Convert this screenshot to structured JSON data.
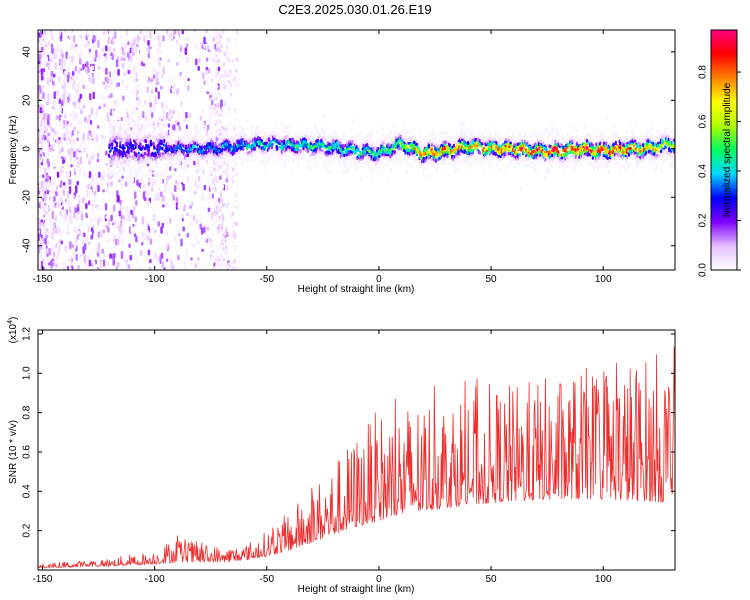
{
  "title": "C2E3.2025.030.01.26.E19",
  "chart_data": [
    {
      "type": "heatmap",
      "title": "C2E3.2025.030.01.26.E19",
      "xlabel": "Height of straight line (km)",
      "ylabel": "Frequency (Hz)",
      "xlim": [
        -152,
        132
      ],
      "ylim": [
        -50,
        49
      ],
      "xticks": [
        -150,
        -100,
        -50,
        0,
        50,
        100
      ],
      "yticks": [
        -40,
        -20,
        0,
        20,
        40
      ],
      "colorbar": {
        "label": "Normalized spectral amplitude",
        "range": [
          0,
          0.97
        ],
        "ticks": [
          0.0,
          0.2,
          0.4,
          0.6,
          0.8
        ],
        "tick_labels": [
          "0.0",
          "0.2",
          "0.4",
          "0.6",
          "0.8"
        ],
        "colormap": [
          "#ffffff",
          "#e6bfff",
          "#8000ff",
          "#0000ff",
          "#00d8ff",
          "#00ff60",
          "#b0ff00",
          "#ffff00",
          "#ff8000",
          "#ff0000",
          "#ff0080"
        ]
      },
      "ridge": {
        "x": [
          -100,
          -75,
          -50,
          -25,
          0,
          10,
          20,
          30,
          40,
          50,
          60,
          70,
          80,
          90,
          100,
          110,
          120,
          132
        ],
        "center_hz": [
          0,
          0,
          2,
          1,
          -2,
          2,
          -2,
          -1,
          1,
          0,
          0,
          -1,
          -1,
          0,
          -1,
          0,
          0,
          2
        ],
        "peak_amplitude": [
          0.3,
          0.4,
          0.45,
          0.5,
          0.5,
          0.6,
          0.85,
          0.8,
          0.75,
          0.8,
          0.85,
          0.9,
          0.9,
          0.9,
          0.9,
          0.85,
          0.8,
          0.6
        ]
      }
    },
    {
      "type": "line",
      "xlabel": "Height of straight line (km)",
      "ylabel": "SNR (10 * v/v)",
      "multiplier_label": "(x10",
      "multiplier_exp": "4",
      "multiplier_close": ")",
      "xlim": [
        -152,
        132
      ],
      "ylim": [
        0,
        1.22
      ],
      "xticks": [
        -150,
        -100,
        -50,
        0,
        50,
        100
      ],
      "yticks": [
        0.2,
        0.4,
        0.6,
        0.8,
        1.0,
        1.2
      ],
      "ytick_labels": [
        "0.2",
        "0.4",
        "0.6",
        "0.8",
        "1.0",
        "1.2"
      ],
      "color": "#ee2a2a",
      "envelope": {
        "x": [
          -152,
          -120,
          -100,
          -90,
          -80,
          -70,
          -60,
          -50,
          -40,
          -30,
          -20,
          -10,
          0,
          10,
          20,
          40,
          60,
          80,
          100,
          120,
          132
        ],
        "baseline": [
          0.01,
          0.02,
          0.03,
          0.04,
          0.04,
          0.04,
          0.05,
          0.07,
          0.1,
          0.14,
          0.18,
          0.22,
          0.25,
          0.28,
          0.3,
          0.33,
          0.35,
          0.36,
          0.36,
          0.35,
          0.34
        ],
        "upper": [
          0.03,
          0.06,
          0.1,
          0.18,
          0.14,
          0.12,
          0.13,
          0.2,
          0.3,
          0.42,
          0.55,
          0.7,
          0.82,
          0.85,
          0.9,
          0.95,
          0.95,
          1.0,
          1.05,
          1.1,
          1.15
        ]
      }
    }
  ]
}
